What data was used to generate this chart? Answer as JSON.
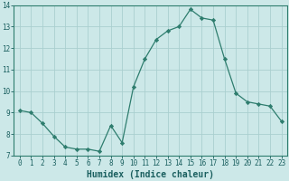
{
  "xlabel": "Humidex (Indice chaleur)",
  "ylabel": "",
  "x_values": [
    0,
    1,
    2,
    3,
    4,
    5,
    6,
    7,
    8,
    9,
    10,
    11,
    12,
    13,
    14,
    15,
    16,
    17,
    18,
    19,
    20,
    21,
    22,
    23
  ],
  "y_values": [
    9.1,
    9.0,
    8.5,
    7.9,
    7.4,
    7.3,
    7.3,
    7.2,
    8.4,
    7.6,
    10.2,
    11.5,
    12.4,
    12.8,
    13.0,
    13.8,
    13.4,
    13.3,
    11.5,
    9.9,
    9.5,
    9.4,
    9.3,
    8.6
  ],
  "line_color": "#2e7d6e",
  "marker": "D",
  "marker_size": 2.2,
  "bg_color": "#cce8e8",
  "grid_color": "#aacfcf",
  "ylim": [
    7,
    14
  ],
  "xlim": [
    -0.5,
    23.5
  ],
  "yticks": [
    7,
    8,
    9,
    10,
    11,
    12,
    13,
    14
  ],
  "xticks": [
    0,
    1,
    2,
    3,
    4,
    5,
    6,
    7,
    8,
    9,
    10,
    11,
    12,
    13,
    14,
    15,
    16,
    17,
    18,
    19,
    20,
    21,
    22,
    23
  ],
  "tick_fontsize": 5.5,
  "xlabel_fontsize": 7.0,
  "label_color": "#1a5f5f"
}
